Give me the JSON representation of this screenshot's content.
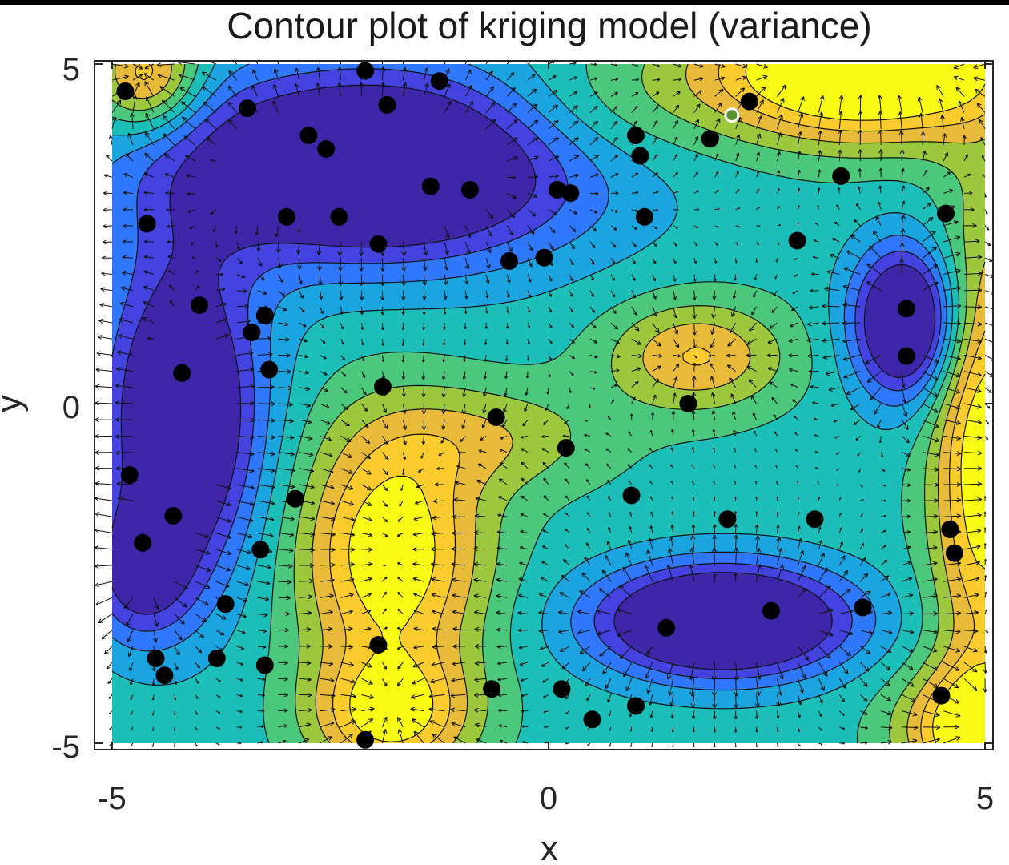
{
  "chart_data": {
    "type": "contour",
    "title": "Contour plot of kriging model (variance)",
    "xlabel": "x",
    "ylabel": "y",
    "xlim": [
      -5,
      5
    ],
    "ylim": [
      -5,
      5
    ],
    "x_ticks": [
      -5,
      0,
      5
    ],
    "y_ticks": [
      -5,
      0,
      5
    ],
    "x_tick_labels": [
      "-5",
      "0",
      "5"
    ],
    "y_tick_labels": [
      "-5",
      "0",
      "5"
    ],
    "colormap": [
      "#3e26a8",
      "#4443e0",
      "#2f78fb",
      "#1aa4e0",
      "#1bbfb8",
      "#4bc87c",
      "#9cc83e",
      "#e8ba3a",
      "#f9cb2c",
      "#f9fb14"
    ],
    "contour_levels": 10,
    "quiver": true,
    "sample_points": [
      [
        -4.85,
        4.6
      ],
      [
        -3.45,
        4.35
      ],
      [
        -2.1,
        4.9
      ],
      [
        -1.25,
        4.75
      ],
      [
        -1.85,
        4.4
      ],
      [
        -2.75,
        3.95
      ],
      [
        -2.55,
        3.75
      ],
      [
        -1.35,
        3.2
      ],
      [
        -0.9,
        3.15
      ],
      [
        0.1,
        3.15
      ],
      [
        0.25,
        3.1
      ],
      [
        1.0,
        3.95
      ],
      [
        1.05,
        3.65
      ],
      [
        1.85,
        3.9
      ],
      [
        2.3,
        4.45
      ],
      [
        -3.0,
        2.75
      ],
      [
        -2.4,
        2.75
      ],
      [
        -1.95,
        2.35
      ],
      [
        -0.45,
        2.1
      ],
      [
        -0.05,
        2.15
      ],
      [
        1.1,
        2.75
      ],
      [
        3.35,
        3.35
      ],
      [
        4.55,
        2.8
      ],
      [
        2.85,
        2.4
      ],
      [
        -4.6,
        2.65
      ],
      [
        -4.0,
        1.45
      ],
      [
        -3.25,
        1.3
      ],
      [
        -3.4,
        1.05
      ],
      [
        -3.2,
        0.5
      ],
      [
        -4.2,
        0.45
      ],
      [
        -1.9,
        0.25
      ],
      [
        -0.6,
        -0.2
      ],
      [
        0.2,
        -0.65
      ],
      [
        1.6,
        0.0
      ],
      [
        4.1,
        1.4
      ],
      [
        4.1,
        0.7
      ],
      [
        -4.8,
        -1.05
      ],
      [
        -4.3,
        -1.65
      ],
      [
        -4.65,
        -2.05
      ],
      [
        -2.9,
        -1.4
      ],
      [
        -3.3,
        -2.15
      ],
      [
        -3.7,
        -2.95
      ],
      [
        0.95,
        -1.35
      ],
      [
        2.05,
        -1.7
      ],
      [
        3.05,
        -1.7
      ],
      [
        4.6,
        -1.85
      ],
      [
        4.65,
        -2.2
      ],
      [
        3.6,
        -3.0
      ],
      [
        2.55,
        -3.05
      ],
      [
        1.35,
        -3.3
      ],
      [
        -4.5,
        -3.75
      ],
      [
        -3.8,
        -3.75
      ],
      [
        -3.25,
        -3.85
      ],
      [
        -4.4,
        -4.0
      ],
      [
        -1.95,
        -3.55
      ],
      [
        -0.65,
        -4.2
      ],
      [
        0.15,
        -4.2
      ],
      [
        1.0,
        -4.45
      ],
      [
        0.5,
        -4.65
      ],
      [
        4.5,
        -4.3
      ],
      [
        -2.1,
        -4.95
      ]
    ],
    "highlight_point": [
      2.1,
      4.25
    ]
  }
}
